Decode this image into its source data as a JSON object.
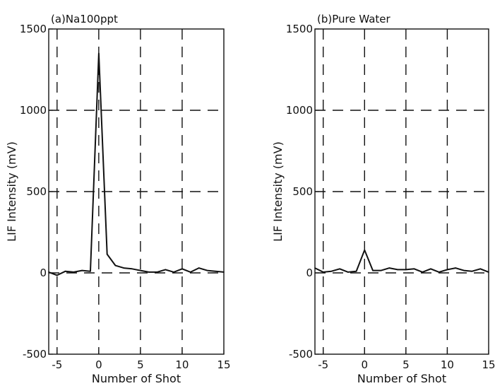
{
  "chart_data": [
    {
      "type": "line",
      "title": "(a)Na100ppt",
      "xlabel": "Number of Shot",
      "ylabel": "LIF Intensity (mV)",
      "xlim": [
        -6,
        15
      ],
      "ylim": [
        -500,
        1500
      ],
      "xticks": [
        -5,
        0,
        5,
        10,
        15
      ],
      "yticks": [
        -500,
        0,
        500,
        1000,
        1500
      ],
      "grid": "dashed",
      "series": [
        {
          "x": [
            -6,
            -5,
            -4,
            -3,
            -2,
            -1,
            0,
            1,
            2,
            3,
            4,
            5,
            6,
            7,
            8,
            9,
            10,
            11,
            12,
            13,
            14,
            15
          ],
          "y": [
            5,
            -15,
            10,
            5,
            15,
            10,
            1350,
            115,
            45,
            30,
            25,
            15,
            5,
            5,
            20,
            5,
            25,
            5,
            30,
            15,
            10,
            5
          ]
        }
      ]
    },
    {
      "type": "line",
      "title": "(b)Pure Water",
      "xlabel": "Number of Shot",
      "ylabel": "LIF Intensity (mV)",
      "xlim": [
        -6,
        15
      ],
      "ylim": [
        -500,
        1500
      ],
      "xticks": [
        -5,
        0,
        5,
        10,
        15
      ],
      "yticks": [
        -500,
        0,
        500,
        1000,
        1500
      ],
      "grid": "dashed",
      "series": [
        {
          "x": [
            -6,
            -5,
            -4,
            -3,
            -2,
            -1,
            0,
            1,
            2,
            3,
            4,
            5,
            6,
            7,
            8,
            9,
            10,
            11,
            12,
            13,
            14,
            15
          ],
          "y": [
            30,
            5,
            10,
            25,
            5,
            10,
            140,
            15,
            15,
            30,
            20,
            20,
            25,
            5,
            25,
            5,
            20,
            30,
            15,
            10,
            25,
            5
          ]
        }
      ]
    }
  ]
}
